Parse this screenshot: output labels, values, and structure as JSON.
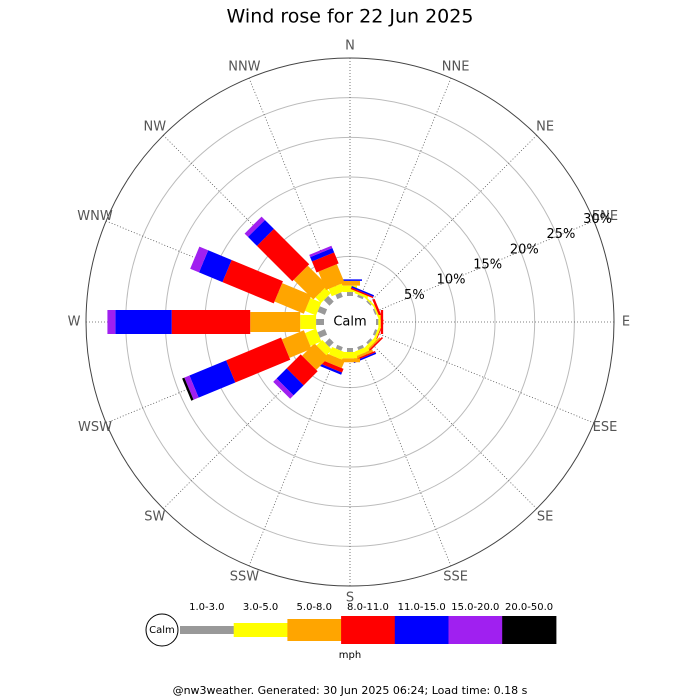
{
  "chart_data": {
    "type": "windrose",
    "title": "Wind rose for 22 Jun 2025",
    "directions": [
      "N",
      "NNE",
      "NE",
      "ENE",
      "E",
      "ESE",
      "SE",
      "SSE",
      "S",
      "SSW",
      "SW",
      "WSW",
      "W",
      "WNW",
      "NW",
      "NNW"
    ],
    "calm_label": "Calm",
    "rlim": [
      0,
      30
    ],
    "rticks": [
      {
        "value": 5,
        "label": "5%"
      },
      {
        "value": 10,
        "label": "10%"
      },
      {
        "value": 15,
        "label": "15%"
      },
      {
        "value": 20,
        "label": "20%"
      },
      {
        "value": 25,
        "label": "25%"
      },
      {
        "value": 30,
        "label": "30%"
      }
    ],
    "series": [
      {
        "name": "1.0-3.0",
        "color": "#999999",
        "values": [
          0.5,
          0.3,
          0.2,
          0.2,
          0.3,
          0.3,
          0.3,
          0.4,
          0.5,
          0.5,
          0.8,
          1,
          1,
          1,
          1,
          0.6
        ]
      },
      {
        "name": "3.0-5.0",
        "color": "#ffff00",
        "values": [
          0.8,
          0.3,
          0.2,
          0.2,
          0.3,
          0.3,
          0.4,
          0.6,
          0.8,
          1,
          1,
          1.5,
          2,
          1.5,
          1,
          1
        ]
      },
      {
        "name": "5.0-8.0",
        "color": "#ffa500",
        "values": [
          0.6,
          0,
          0,
          0,
          0,
          0,
          0.2,
          0.3,
          0.5,
          1,
          2.2,
          3,
          6.3,
          4,
          3.5,
          2.5
        ]
      },
      {
        "name": "8.0-11.0",
        "color": "#ff0000",
        "values": [
          0,
          0.2,
          0,
          0.3,
          0.3,
          0.1,
          0.2,
          0.2,
          0,
          0.5,
          2.5,
          7.5,
          9.9,
          7,
          6.3,
          1.5
        ]
      },
      {
        "name": "11.0-15.0",
        "color": "#0000ff",
        "values": [
          0.2,
          0.2,
          0,
          0,
          0,
          0,
          0,
          0.2,
          0,
          0.3,
          1.8,
          5,
          7.1,
          3.2,
          1.6,
          0.6
        ]
      },
      {
        "name": "15.0-20.0",
        "color": "#a020f0",
        "values": [
          0,
          0,
          0,
          0,
          0,
          0,
          0,
          0,
          0,
          0,
          0.6,
          0.7,
          1,
          1.2,
          0.6,
          0.3
        ]
      },
      {
        "name": "20.0-50.0",
        "color": "#000000",
        "values": [
          0,
          0,
          0,
          0,
          0,
          0,
          0,
          0,
          0,
          0,
          0,
          0.3,
          0,
          0,
          0,
          0
        ]
      }
    ],
    "unit": "mph",
    "footer": "@nw3weather. Generated: 30 Jun 2025 06:24; Load time: 0.18 s"
  }
}
